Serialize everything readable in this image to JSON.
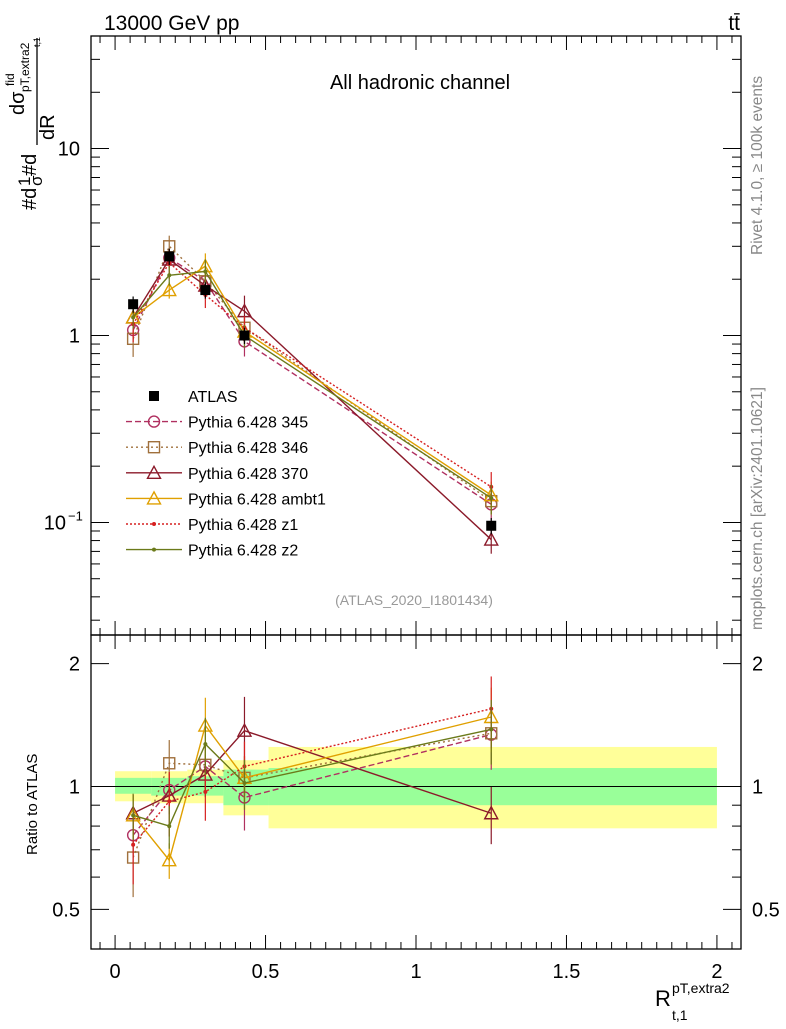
{
  "header": {
    "energy_label": "13000 GeV pp",
    "process_label": "tt̄"
  },
  "side": {
    "rivet_label": "Rivet 4.1.0, ≥ 100k events",
    "site_label": "mcplots.cern.ch [arXiv:2401.10621]"
  },
  "chart_data": {
    "type": "line",
    "title": "All hadronic channel",
    "analysis_id": "(ATLAS_2020_I1801434)",
    "ylabel_main": "#d1/σ#ddσ^fid_{pT,extra2}/dR_{t,1}",
    "ylabel_main_parts": {
      "p1": "#d",
      "p2": "1",
      "p3": "σ",
      "p4": "#d",
      "p5": "dσ",
      "p6": "fid",
      "p7": "pT,extra2",
      "p8": "t,1",
      "p9": "dR"
    },
    "ylabel_ratio": "Ratio to ATLAS",
    "xlabel": {
      "main": "R",
      "sup": "pT,extra2",
      "sub": "t,1"
    },
    "xlim": [
      -0.08,
      2.08
    ],
    "ylim_main": [
      0.025,
      40
    ],
    "ylim_ratio": [
      0.4,
      2.35
    ],
    "x_ticks": [
      {
        "v": 0,
        "label": "0"
      },
      {
        "v": 0.5,
        "label": "0.5"
      },
      {
        "v": 1,
        "label": "1"
      },
      {
        "v": 1.5,
        "label": "1.5"
      },
      {
        "v": 2,
        "label": "2"
      }
    ],
    "y_ticks_main": [
      {
        "v": 0.1,
        "base": "10",
        "exp": "−1"
      },
      {
        "v": 1,
        "base": "1",
        "exp": ""
      },
      {
        "v": 10,
        "base": "10",
        "exp": ""
      }
    ],
    "y_ticks_ratio": [
      {
        "v": 0.5,
        "label": "0.5"
      },
      {
        "v": 1,
        "label": "1"
      },
      {
        "v": 2,
        "label": "2"
      }
    ],
    "data": {
      "name": "ATLAS",
      "color": "#000000",
      "x": [
        0.06,
        0.18,
        0.3,
        0.43,
        1.25
      ],
      "y": [
        1.47,
        2.65,
        1.75,
        1.0,
        0.096
      ],
      "bins": [
        [
          0,
          0.12
        ],
        [
          0.12,
          0.24
        ],
        [
          0.24,
          0.36
        ],
        [
          0.36,
          0.51
        ],
        [
          0.51,
          2.0
        ]
      ],
      "band_inner": [
        [
          0.96,
          1.05
        ],
        [
          0.95,
          1.05
        ],
        [
          0.95,
          1.06
        ],
        [
          0.9,
          1.1
        ],
        [
          0.9,
          1.11
        ]
      ],
      "band_outer": [
        [
          0.92,
          1.09
        ],
        [
          0.91,
          1.09
        ],
        [
          0.91,
          1.1
        ],
        [
          0.85,
          1.16
        ],
        [
          0.79,
          1.25
        ]
      ]
    },
    "series": [
      {
        "name": "Pythia 6.428 345",
        "color": "#b03060",
        "marker": "circle",
        "dash": "6,3",
        "y": [
          1.07,
          2.6,
          1.95,
          0.93,
          0.125
        ],
        "ratio": [
          0.76,
          0.98,
          1.12,
          0.94,
          1.34
        ],
        "err": [
          0.11,
          0.1,
          0.12,
          0.17,
          0.18
        ]
      },
      {
        "name": "Pythia 6.428 346",
        "color": "#a0703c",
        "marker": "square",
        "dash": "2,3",
        "y": [
          0.96,
          3.0,
          1.95,
          1.1,
          0.13
        ],
        "ratio": [
          0.67,
          1.14,
          1.13,
          1.05,
          1.35
        ],
        "err": [
          0.2,
          0.14,
          0.13,
          0.13,
          0.16
        ]
      },
      {
        "name": "Pythia 6.428 370",
        "color": "#8b1a2a",
        "marker": "triangle",
        "dash": "",
        "y": [
          1.25,
          2.55,
          1.85,
          1.35,
          0.081
        ],
        "ratio": [
          0.86,
          0.95,
          1.07,
          1.37,
          0.86
        ],
        "err": [
          0.11,
          0.1,
          0.12,
          0.21,
          0.16
        ]
      },
      {
        "name": "Pythia 6.428 ambt1",
        "color": "#e0a000",
        "marker": "triangle",
        "dash": "",
        "y": [
          1.25,
          1.75,
          2.35,
          1.05,
          0.14
        ],
        "ratio": [
          0.85,
          0.66,
          1.41,
          1.05,
          1.48
        ],
        "err": [
          0.12,
          0.1,
          0.17,
          0.13,
          0.18
        ]
      },
      {
        "name": "Pythia 6.428 z1",
        "color": "#d62020",
        "marker": "dot",
        "dash": "2,2",
        "y": [
          1.15,
          2.45,
          1.65,
          1.1,
          0.155
        ],
        "ratio": [
          0.72,
          0.92,
          0.97,
          1.12,
          1.55
        ],
        "err": [
          0.2,
          0.18,
          0.15,
          0.15,
          0.2
        ]
      },
      {
        "name": "Pythia 6.428 z2",
        "color": "#6b7a1a",
        "marker": "dot",
        "dash": "",
        "y": [
          1.25,
          2.1,
          2.2,
          1.0,
          0.135
        ],
        "ratio": [
          0.85,
          0.8,
          1.27,
          1.02,
          1.38
        ],
        "err": [
          0.13,
          0.12,
          0.16,
          0.14,
          0.18
        ]
      }
    ]
  }
}
